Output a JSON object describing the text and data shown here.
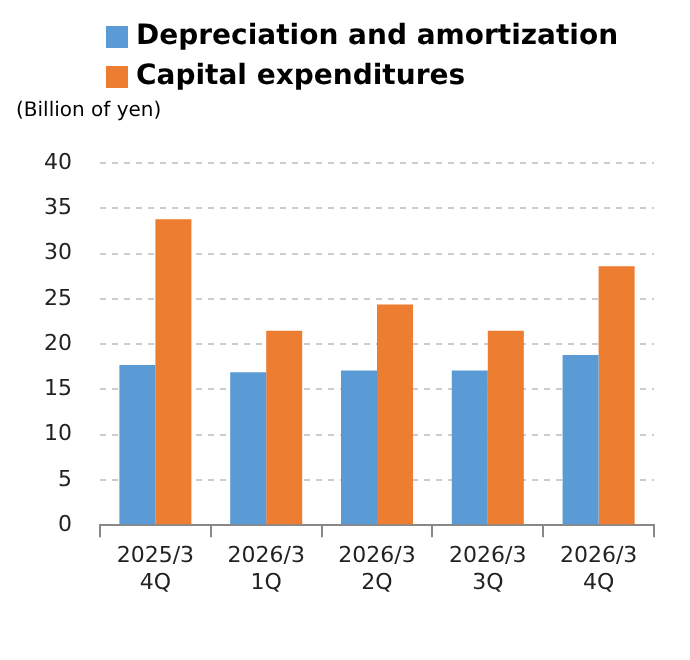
{
  "chart_data": {
    "type": "bar",
    "ylabel": "(Billion of yen)",
    "categories": [
      "2025/3 4Q",
      "2026/3 1Q",
      "2026/3 2Q",
      "2026/3 3Q",
      "2026/3 4Q"
    ],
    "series": [
      {
        "name": "Depreciation and amortization",
        "color": "#5b9bd5",
        "values": [
          17.7,
          16.9,
          17.1,
          17.1,
          18.8
        ]
      },
      {
        "name": "Capital expenditures",
        "color": "#ed7d31",
        "values": [
          33.8,
          21.5,
          24.4,
          21.5,
          28.6
        ]
      }
    ],
    "ylim": [
      0,
      40
    ],
    "yticks": [
      0,
      5,
      10,
      15,
      20,
      25,
      30,
      35,
      40
    ],
    "grid": "y",
    "legend": "top"
  }
}
